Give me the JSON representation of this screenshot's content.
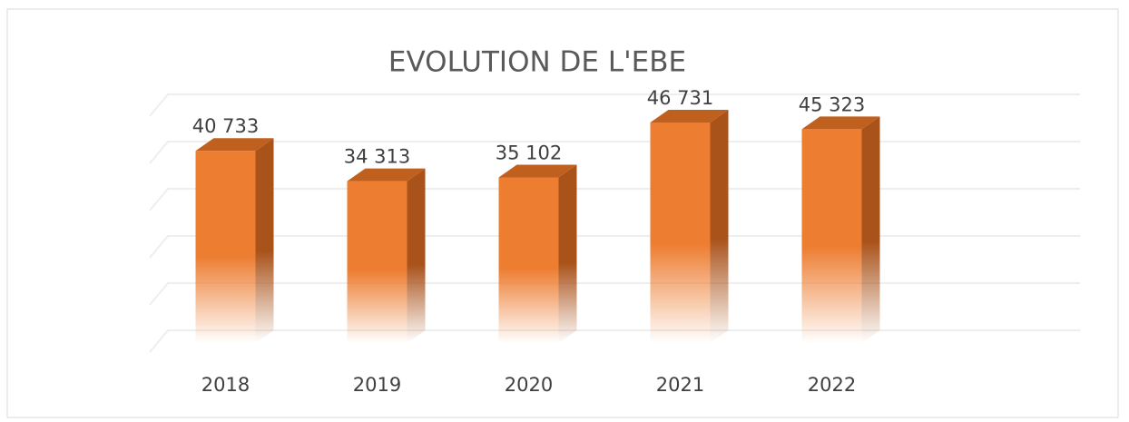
{
  "chart_data": {
    "type": "bar3d",
    "title": "EVOLUTION DE L'EBE",
    "categories": [
      "2018",
      "2019",
      "2020",
      "2021",
      "2022"
    ],
    "values": [
      40733,
      34313,
      35102,
      46731,
      45323
    ],
    "value_labels": [
      "40 733",
      "34 313",
      "35 102",
      "46 731",
      "45 323"
    ],
    "color": "#ed7d31",
    "ylim": [
      0,
      50000
    ],
    "yticks": [
      0,
      10000,
      20000,
      30000,
      40000,
      50000
    ],
    "grid": true
  }
}
